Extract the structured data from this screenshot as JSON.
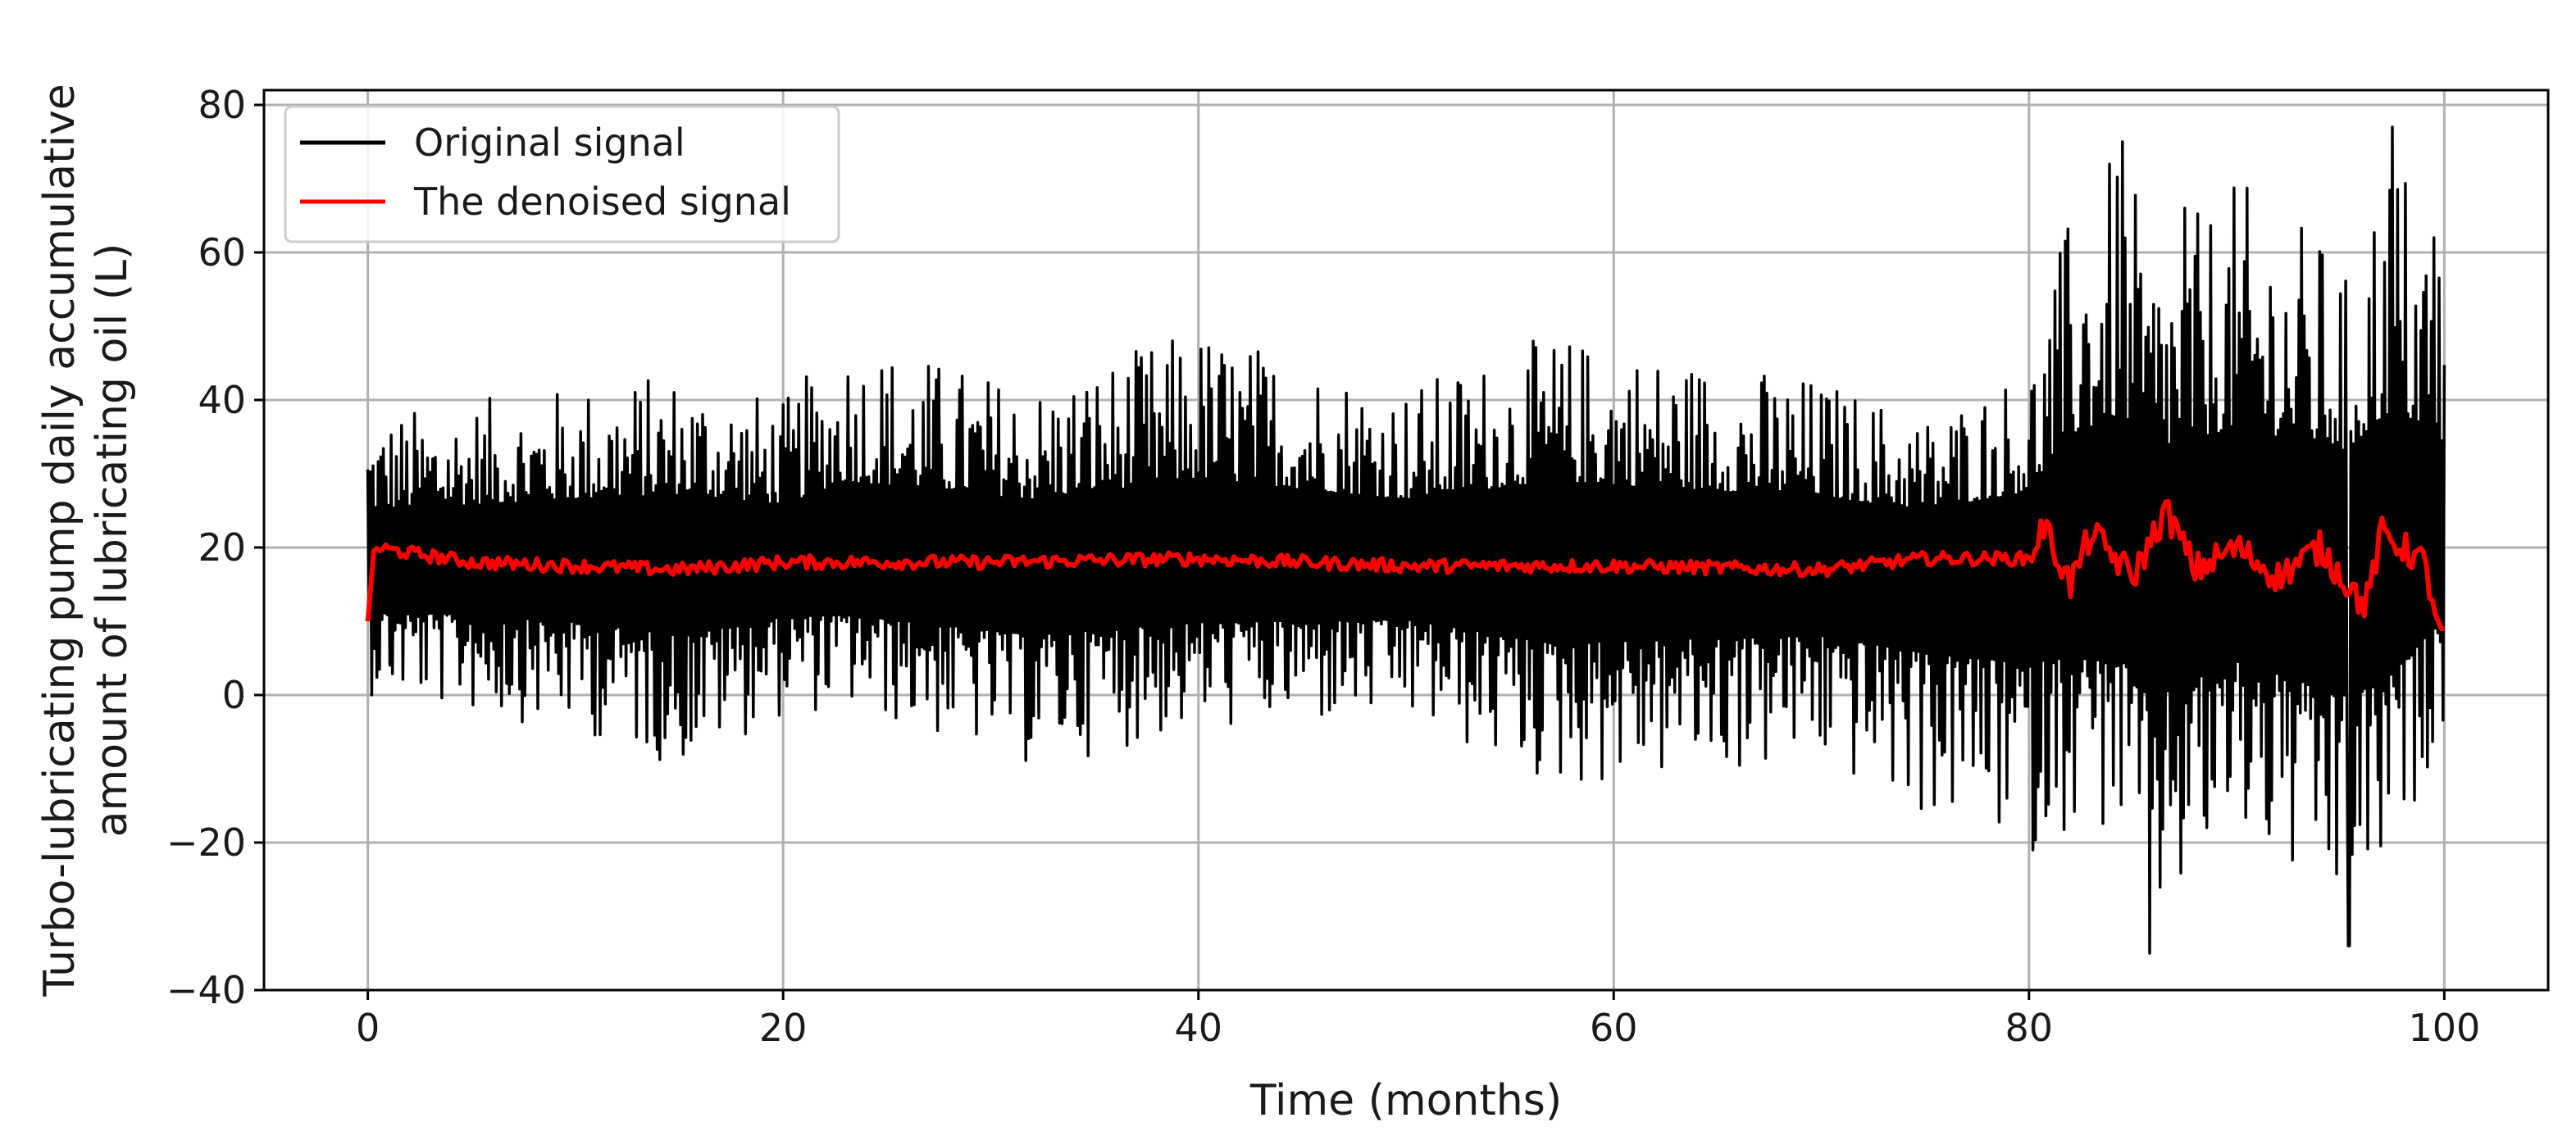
{
  "chart_data": {
    "type": "line",
    "title": "",
    "xlabel": "Time (months)",
    "ylabel_lines": [
      "Turbo-lubricating pump daily accumulative",
      "amount of lubricating oil (L)"
    ],
    "xlim": [
      -5,
      105
    ],
    "ylim": [
      -40,
      82
    ],
    "xticks": [
      0,
      20,
      40,
      60,
      80,
      100
    ],
    "yticks": [
      -40,
      -20,
      0,
      20,
      40,
      60,
      80
    ],
    "grid": true,
    "legend_position": "top-left",
    "series": [
      {
        "name": "Original signal",
        "color": "#000000",
        "style": "noisy",
        "x_range": [
          0,
          100
        ],
        "baseline": 18,
        "envelope": [
          {
            "x": 0,
            "min": 0,
            "max": 38
          },
          {
            "x": 10,
            "min": -5,
            "max": 42
          },
          {
            "x": 15,
            "min": -10,
            "max": 44
          },
          {
            "x": 20,
            "min": -3,
            "max": 40
          },
          {
            "x": 23,
            "min": -2,
            "max": 49
          },
          {
            "x": 32,
            "min": -10,
            "max": 42
          },
          {
            "x": 40,
            "min": -5,
            "max": 50
          },
          {
            "x": 50,
            "min": -4,
            "max": 42
          },
          {
            "x": 57,
            "min": -13,
            "max": 49
          },
          {
            "x": 70,
            "min": -10,
            "max": 43
          },
          {
            "x": 75,
            "min": -17,
            "max": 38
          },
          {
            "x": 80,
            "min": -21,
            "max": 45
          },
          {
            "x": 82,
            "min": -18,
            "max": 66
          },
          {
            "x": 84.5,
            "min": -20,
            "max": 75
          },
          {
            "x": 85.8,
            "min": -35,
            "max": 60
          },
          {
            "x": 90,
            "min": -20,
            "max": 70
          },
          {
            "x": 95.4,
            "min": -34,
            "max": 60
          },
          {
            "x": 97.5,
            "min": -25,
            "max": 77
          },
          {
            "x": 100,
            "min": -3,
            "max": 62
          }
        ],
        "peaks": [
          {
            "x": 84.5,
            "y": 75
          },
          {
            "x": 97.5,
            "y": 77
          },
          {
            "x": 87.5,
            "y": 66
          },
          {
            "x": 99.5,
            "y": 62
          },
          {
            "x": 85.8,
            "y": -35
          },
          {
            "x": 95.4,
            "y": -34
          },
          {
            "x": 80.2,
            "y": -21
          }
        ]
      },
      {
        "name": "The denoised signal",
        "color": "#ff0000",
        "style": "smooth",
        "x_range": [
          0,
          100
        ],
        "points": [
          {
            "x": 0,
            "y": 10
          },
          {
            "x": 0.3,
            "y": 20
          },
          {
            "x": 5,
            "y": 18
          },
          {
            "x": 10,
            "y": 17.5
          },
          {
            "x": 15,
            "y": 17
          },
          {
            "x": 20,
            "y": 18
          },
          {
            "x": 30,
            "y": 18
          },
          {
            "x": 40,
            "y": 18.5
          },
          {
            "x": 50,
            "y": 17.5
          },
          {
            "x": 60,
            "y": 17.5
          },
          {
            "x": 70,
            "y": 17
          },
          {
            "x": 75,
            "y": 18.5
          },
          {
            "x": 80,
            "y": 18.5
          },
          {
            "x": 80.7,
            "y": 23
          },
          {
            "x": 82,
            "y": 15
          },
          {
            "x": 83,
            "y": 22
          },
          {
            "x": 85,
            "y": 16
          },
          {
            "x": 86.6,
            "y": 25
          },
          {
            "x": 88,
            "y": 17
          },
          {
            "x": 90,
            "y": 20
          },
          {
            "x": 92,
            "y": 16
          },
          {
            "x": 94,
            "y": 20
          },
          {
            "x": 96.2,
            "y": 12
          },
          {
            "x": 97,
            "y": 22
          },
          {
            "x": 99,
            "y": 18
          },
          {
            "x": 99.8,
            "y": 9
          }
        ]
      }
    ]
  }
}
